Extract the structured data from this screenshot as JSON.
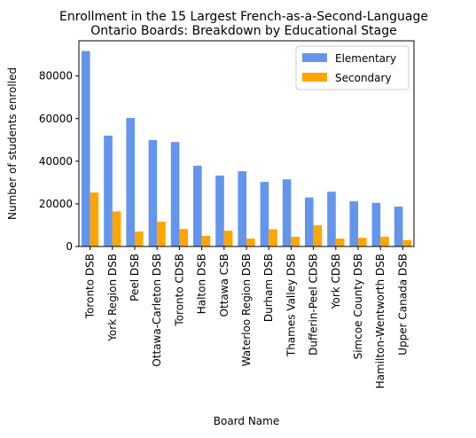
{
  "chart_data": {
    "type": "bar",
    "title_lines": [
      "Enrollment in the 15 Largest French-as-a-Second-Language",
      "Ontario Boards: Breakdown by Educational Stage"
    ],
    "xlabel": "Board Name",
    "ylabel": "Number of students enrolled",
    "ylim": [
      0,
      96500
    ],
    "yticks": [
      0,
      20000,
      40000,
      60000,
      80000
    ],
    "grid": false,
    "legend_position": "top-right",
    "categories": [
      "Toronto DSB",
      "York Region DSB",
      "Peel DSB",
      "Ottawa-Carleton DSB",
      "Toronto CDSB",
      "Halton DSB",
      "Ottawa CSB",
      "Waterloo Region DSB",
      "Durham DSB",
      "Thames Valley DSB",
      "Dufferin-Peel CDSB",
      "York CDSB",
      "Simcoe County DSB",
      "Hamilton-Wentworth DSB",
      "Upper Canada DSB"
    ],
    "series": [
      {
        "name": "Elementary",
        "color": "#6495ED",
        "values": [
          91700,
          52000,
          60300,
          49900,
          49000,
          37900,
          33300,
          35300,
          30300,
          31500,
          23000,
          25700,
          21200,
          20500,
          18700
        ]
      },
      {
        "name": "Secondary",
        "color": "#FFA500",
        "values": [
          25300,
          16500,
          7000,
          11600,
          8200,
          5000,
          7400,
          3700,
          8100,
          4600,
          9900,
          3700,
          4100,
          4600,
          3000
        ]
      }
    ]
  }
}
